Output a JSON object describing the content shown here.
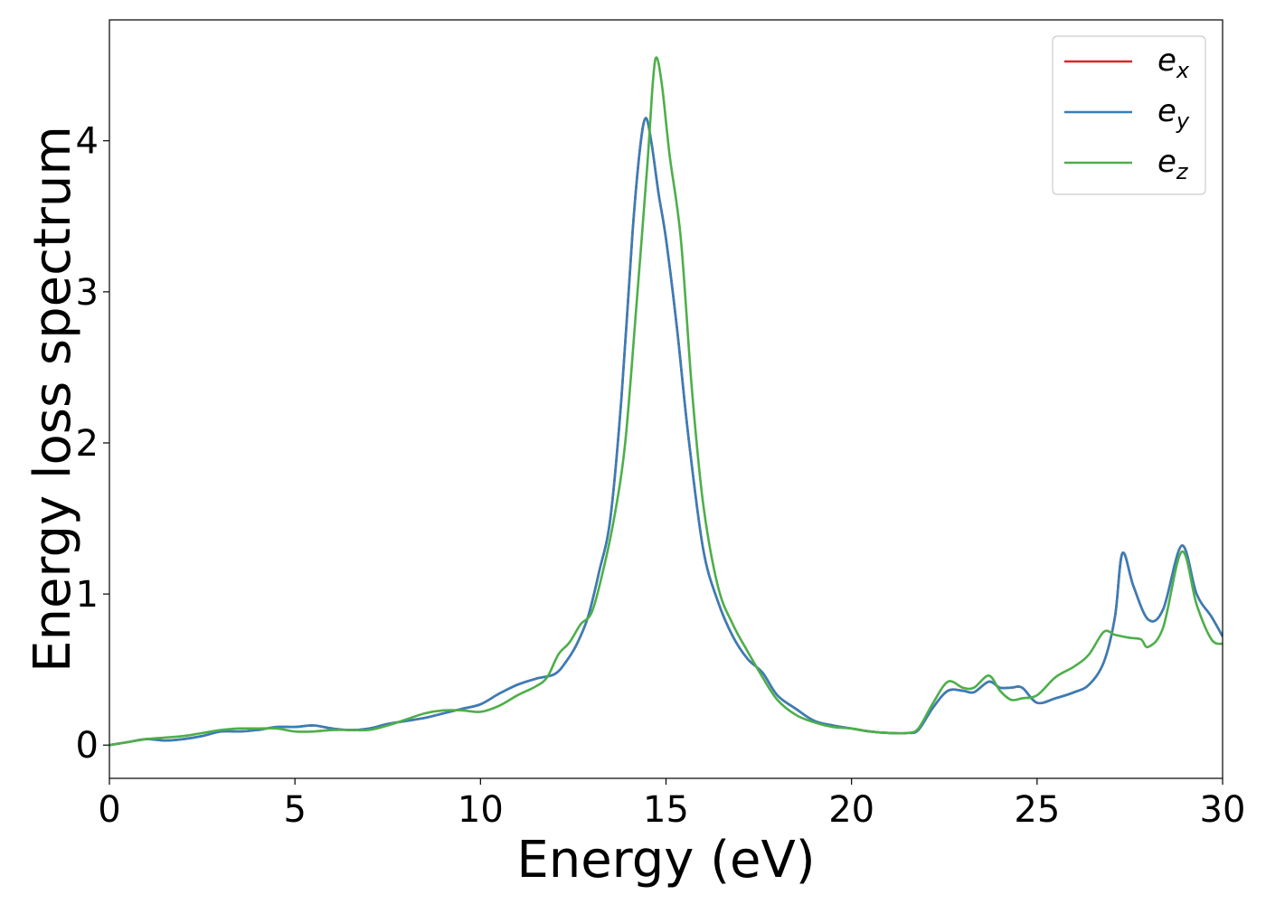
{
  "chart_data": {
    "type": "line",
    "title": "",
    "xlabel": "Energy (eV)",
    "ylabel": "Energy loss spectrum",
    "xlim": [
      0,
      30
    ],
    "ylim": [
      -0.22,
      4.8
    ],
    "xticks": [
      0,
      5,
      10,
      15,
      20,
      25,
      30
    ],
    "xtick_labels": [
      "0",
      "5",
      "10",
      "15",
      "20",
      "25",
      "30"
    ],
    "yticks": [
      0,
      1,
      2,
      3,
      4
    ],
    "ytick_labels": [
      "0",
      "1",
      "2",
      "3",
      "4"
    ],
    "grid": false,
    "legend_position": "top-right",
    "series": [
      {
        "name": "e_x",
        "label_base": "e",
        "label_sub": "x",
        "color": "#d62728",
        "x": [
          0,
          0.5,
          1,
          1.5,
          2,
          2.5,
          3,
          3.5,
          4,
          4.5,
          5,
          5.5,
          6,
          6.5,
          7,
          7.5,
          8,
          8.5,
          9,
          9.5,
          10,
          10.5,
          11,
          11.5,
          12,
          12.3,
          12.6,
          12.9,
          13.2,
          13.5,
          13.8,
          14.1,
          14.3,
          14.45,
          14.6,
          14.8,
          15,
          15.3,
          15.6,
          16,
          16.4,
          16.8,
          17.2,
          17.6,
          18,
          18.5,
          19,
          19.5,
          20,
          20.5,
          21,
          21.5,
          21.8,
          22.2,
          22.6,
          23,
          23.3,
          23.7,
          24,
          24.3,
          24.6,
          25,
          25.5,
          26,
          26.4,
          26.8,
          27.1,
          27.3,
          27.6,
          28,
          28.4,
          28.9,
          29.3,
          29.7,
          30
        ],
        "values": [
          0,
          0.02,
          0.04,
          0.03,
          0.04,
          0.06,
          0.09,
          0.09,
          0.1,
          0.12,
          0.12,
          0.13,
          0.11,
          0.1,
          0.11,
          0.14,
          0.16,
          0.18,
          0.21,
          0.24,
          0.27,
          0.34,
          0.4,
          0.44,
          0.47,
          0.55,
          0.67,
          0.85,
          1.15,
          1.5,
          2.3,
          3.4,
          3.95,
          4.15,
          4.0,
          3.65,
          3.35,
          2.75,
          2.05,
          1.3,
          0.95,
          0.72,
          0.57,
          0.48,
          0.33,
          0.24,
          0.16,
          0.13,
          0.11,
          0.09,
          0.08,
          0.08,
          0.1,
          0.25,
          0.36,
          0.36,
          0.35,
          0.42,
          0.38,
          0.38,
          0.38,
          0.28,
          0.31,
          0.35,
          0.4,
          0.55,
          0.85,
          1.27,
          1.05,
          0.83,
          0.9,
          1.32,
          1.0,
          0.85,
          0.72
        ]
      },
      {
        "name": "e_y",
        "label_base": "e",
        "label_sub": "y",
        "color": "#377eb8",
        "x": [
          0,
          0.5,
          1,
          1.5,
          2,
          2.5,
          3,
          3.5,
          4,
          4.5,
          5,
          5.5,
          6,
          6.5,
          7,
          7.5,
          8,
          8.5,
          9,
          9.5,
          10,
          10.5,
          11,
          11.5,
          12,
          12.3,
          12.6,
          12.9,
          13.2,
          13.5,
          13.8,
          14.1,
          14.3,
          14.45,
          14.6,
          14.8,
          15,
          15.3,
          15.6,
          16,
          16.4,
          16.8,
          17.2,
          17.6,
          18,
          18.5,
          19,
          19.5,
          20,
          20.5,
          21,
          21.5,
          21.8,
          22.2,
          22.6,
          23,
          23.3,
          23.7,
          24,
          24.3,
          24.6,
          25,
          25.5,
          26,
          26.4,
          26.8,
          27.1,
          27.3,
          27.6,
          28,
          28.4,
          28.9,
          29.3,
          29.7,
          30
        ],
        "values": [
          0,
          0.02,
          0.04,
          0.03,
          0.04,
          0.06,
          0.09,
          0.09,
          0.1,
          0.12,
          0.12,
          0.13,
          0.11,
          0.1,
          0.11,
          0.14,
          0.16,
          0.18,
          0.21,
          0.24,
          0.27,
          0.34,
          0.4,
          0.44,
          0.47,
          0.55,
          0.67,
          0.85,
          1.15,
          1.5,
          2.3,
          3.4,
          3.95,
          4.15,
          4.0,
          3.65,
          3.35,
          2.75,
          2.05,
          1.3,
          0.95,
          0.72,
          0.57,
          0.48,
          0.33,
          0.24,
          0.16,
          0.13,
          0.11,
          0.09,
          0.08,
          0.08,
          0.1,
          0.25,
          0.36,
          0.36,
          0.35,
          0.42,
          0.38,
          0.38,
          0.38,
          0.28,
          0.31,
          0.35,
          0.4,
          0.55,
          0.85,
          1.27,
          1.05,
          0.83,
          0.9,
          1.32,
          1.0,
          0.85,
          0.72
        ]
      },
      {
        "name": "e_z",
        "label_base": "e",
        "label_sub": "z",
        "color": "#4daf4a",
        "x": [
          0,
          0.5,
          1,
          1.5,
          2,
          2.5,
          3,
          3.5,
          4,
          4.5,
          5,
          5.5,
          6,
          6.5,
          7,
          7.5,
          8,
          8.5,
          9,
          9.5,
          10,
          10.5,
          11,
          11.5,
          11.8,
          12.1,
          12.4,
          12.7,
          13,
          13.3,
          13.6,
          13.9,
          14.2,
          14.5,
          14.65,
          14.75,
          14.9,
          15.1,
          15.4,
          15.7,
          16,
          16.4,
          16.8,
          17.2,
          17.6,
          18,
          18.5,
          19,
          19.5,
          20,
          20.5,
          21,
          21.5,
          21.8,
          22.2,
          22.6,
          23,
          23.3,
          23.7,
          24,
          24.3,
          24.6,
          25,
          25.5,
          26,
          26.4,
          26.8,
          27.1,
          27.5,
          27.8,
          28,
          28.4,
          28.9,
          29.3,
          29.7,
          30
        ],
        "values": [
          0,
          0.02,
          0.04,
          0.05,
          0.06,
          0.08,
          0.1,
          0.11,
          0.11,
          0.11,
          0.09,
          0.09,
          0.1,
          0.1,
          0.1,
          0.13,
          0.17,
          0.21,
          0.23,
          0.23,
          0.22,
          0.26,
          0.33,
          0.39,
          0.45,
          0.6,
          0.68,
          0.8,
          0.88,
          1.15,
          1.5,
          2.0,
          2.9,
          3.85,
          4.4,
          4.55,
          4.35,
          3.9,
          3.35,
          2.35,
          1.6,
          1.05,
          0.8,
          0.62,
          0.45,
          0.3,
          0.2,
          0.15,
          0.12,
          0.11,
          0.09,
          0.08,
          0.08,
          0.11,
          0.28,
          0.42,
          0.38,
          0.38,
          0.46,
          0.36,
          0.3,
          0.31,
          0.33,
          0.45,
          0.52,
          0.6,
          0.75,
          0.73,
          0.71,
          0.7,
          0.65,
          0.78,
          1.28,
          0.93,
          0.7,
          0.67
        ]
      }
    ]
  }
}
